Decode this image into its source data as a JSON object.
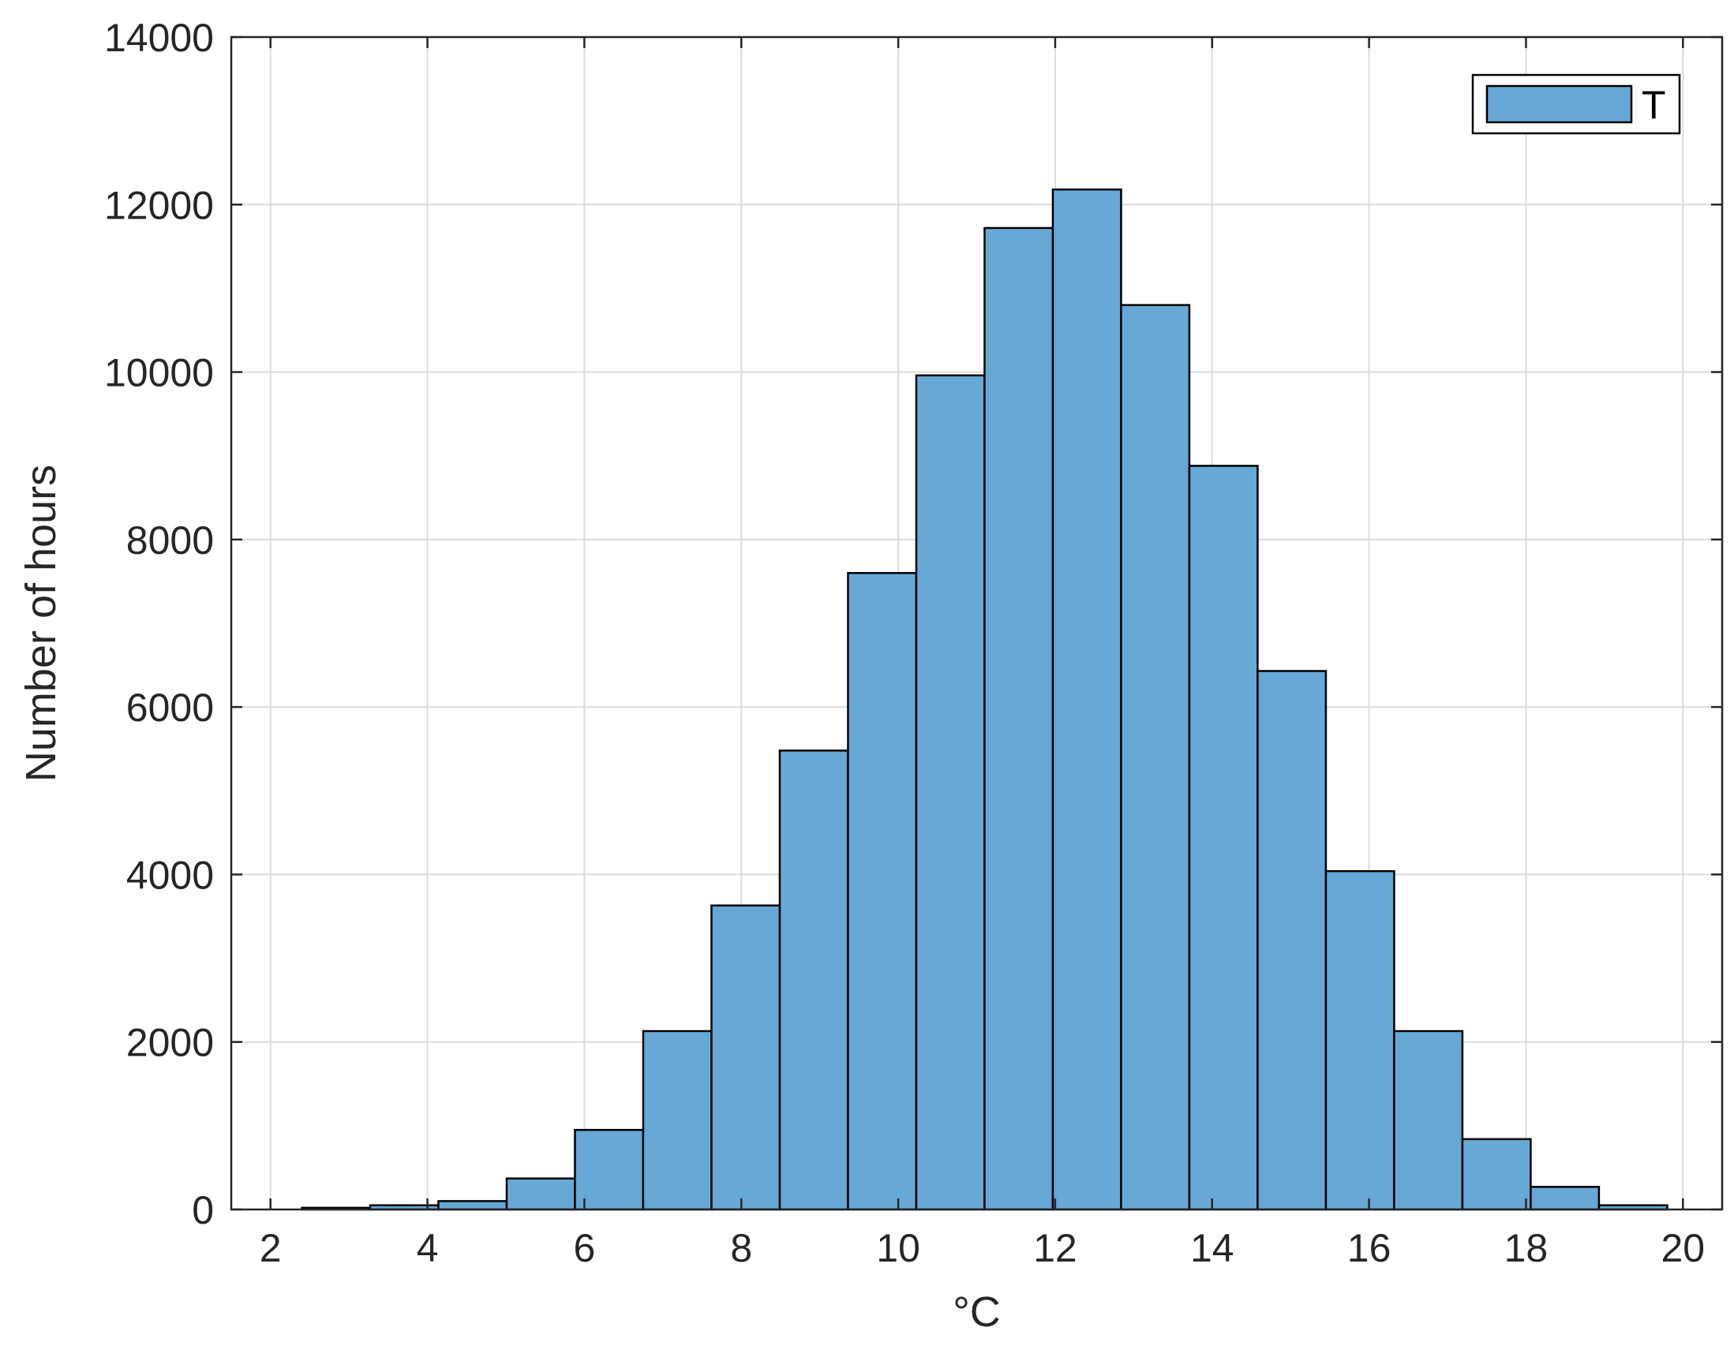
{
  "chart_data": {
    "type": "bar",
    "subtype": "histogram",
    "title": "",
    "xlabel": "°C",
    "ylabel": "Number of hours",
    "xlim": [
      1.5,
      20.5
    ],
    "ylim": [
      0,
      14000
    ],
    "xticks": [
      2,
      4,
      6,
      8,
      10,
      12,
      14,
      16,
      18,
      20
    ],
    "yticks": [
      0,
      2000,
      4000,
      6000,
      8000,
      10000,
      12000,
      14000
    ],
    "grid": true,
    "legend": {
      "position": "top-right",
      "entries": [
        "T"
      ]
    },
    "bar_color": "#66a8d6",
    "bin_edges": [
      2.4,
      3.27,
      4.14,
      5.01,
      5.88,
      6.75,
      7.62,
      8.49,
      9.36,
      10.23,
      11.1,
      11.97,
      12.84,
      13.71,
      14.58,
      15.45,
      16.32,
      17.19,
      18.06,
      18.93,
      19.8
    ],
    "series": [
      {
        "name": "T",
        "values": [
          20,
          50,
          100,
          370,
          950,
          2130,
          3630,
          5480,
          7600,
          9960,
          11720,
          12180,
          10800,
          8880,
          6430,
          4040,
          2130,
          840,
          270,
          50
        ]
      }
    ]
  }
}
